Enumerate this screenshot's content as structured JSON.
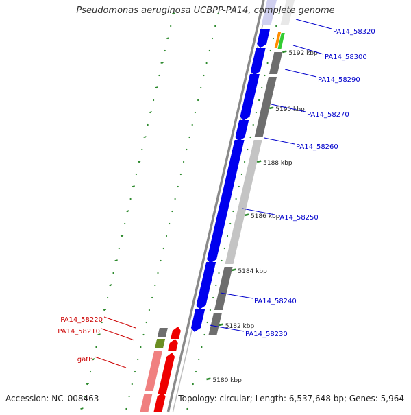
{
  "title": "Pseudomonas aeruginosa UCBPP-PA14, complete genome",
  "accession": "Accession: NC_008463",
  "topology": "Topology: circular; Length: 6,537,648 bp; Genes: 5,964",
  "colors": {
    "forward_cds": "#0000ee",
    "reverse_cds": "#ee0000",
    "gray_dark": "#6e6e6e",
    "gray_light": "#c4c4c4",
    "backbone": "#8a8a8a",
    "ticks": "#2d8a2d",
    "label_blue": "#0000cc",
    "label_red": "#cc0000",
    "orange": "#ff8c00",
    "green": "#33cc33",
    "olive": "#6b8e23",
    "pink": "#f08080"
  },
  "scale_ticks": [
    "5192 kbp",
    "5190 kbp",
    "5188 kbp",
    "5186 kbp",
    "5184 kbp",
    "5182 kbp",
    "5180 kbp"
  ],
  "gene_labels_right": [
    "PA14_58320",
    "PA14_58300",
    "PA14_58290",
    "PA14_58270",
    "PA14_58260",
    "PA14_58250",
    "PA14_58240",
    "PA14_58230"
  ],
  "gene_labels_left": [
    "PA14_58220",
    "PA14_58210",
    "gatB"
  ]
}
